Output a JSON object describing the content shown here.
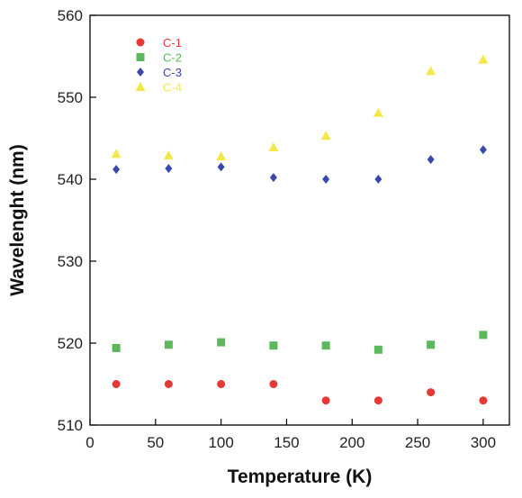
{
  "chart_data": {
    "type": "scatter",
    "xlabel": "Temperature (K)",
    "ylabel": "Wavelenght (nm)",
    "xlim": [
      0,
      320
    ],
    "ylim": [
      510,
      560
    ],
    "xticks": [
      0,
      50,
      100,
      150,
      200,
      250,
      300
    ],
    "yticks": [
      510,
      520,
      530,
      540,
      550,
      560
    ],
    "grid": false,
    "legend_position": "top-left",
    "series": [
      {
        "name": "C-1",
        "marker": "circle",
        "color": "#e53935",
        "x": [
          20,
          60,
          100,
          140,
          180,
          220,
          260,
          300
        ],
        "y": [
          515.0,
          515.0,
          515.0,
          515.0,
          513.0,
          513.0,
          514.0,
          513.0
        ]
      },
      {
        "name": "C-2",
        "marker": "square",
        "color": "#5cb85c",
        "x": [
          20,
          60,
          100,
          140,
          180,
          220,
          260,
          300
        ],
        "y": [
          519.4,
          519.8,
          520.1,
          519.7,
          519.7,
          519.2,
          519.8,
          521.0
        ]
      },
      {
        "name": "C-3",
        "marker": "diamond",
        "color": "#3949ab",
        "x": [
          20,
          60,
          100,
          140,
          180,
          220,
          260,
          300
        ],
        "y": [
          541.2,
          541.3,
          541.5,
          540.2,
          540.0,
          540.0,
          542.4,
          543.6
        ]
      },
      {
        "name": "C-4",
        "marker": "triangle",
        "color": "#f3e84a",
        "x": [
          20,
          60,
          100,
          140,
          180,
          220,
          260,
          300
        ],
        "y": [
          543.1,
          542.9,
          542.8,
          543.9,
          545.3,
          548.1,
          553.2,
          554.6
        ]
      }
    ]
  }
}
